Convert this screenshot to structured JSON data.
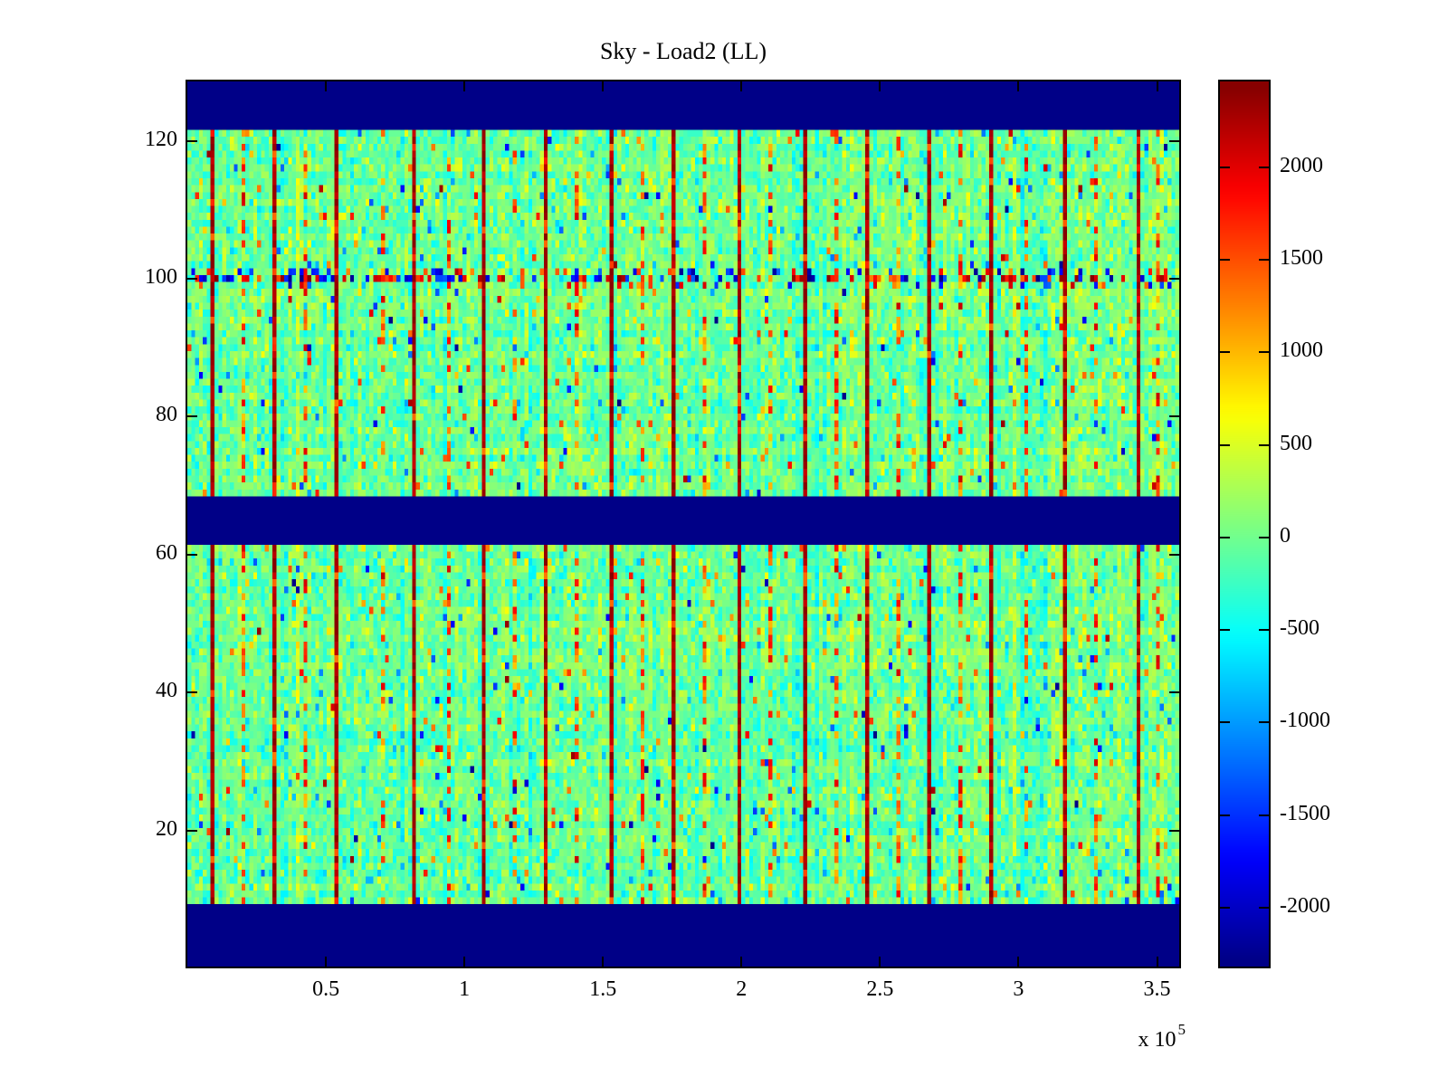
{
  "figure": {
    "background": "#ffffff",
    "frame_color": "#000000"
  },
  "chart_data": {
    "type": "heatmap",
    "title": "Sky - Load2 (LL)",
    "x_axis": {
      "min": 0,
      "max": 358000,
      "ticks": [
        50000,
        100000,
        150000,
        200000,
        250000,
        300000,
        350000
      ],
      "tick_labels": [
        "0.5",
        "1",
        "1.5",
        "2",
        "2.5",
        "3",
        "3.5"
      ],
      "scale_label": "x 10",
      "scale_exponent": "5"
    },
    "y_axis": {
      "min": 0.3,
      "max": 128.6,
      "ticks": [
        20,
        40,
        60,
        80,
        100,
        120
      ],
      "tick_labels": [
        "20",
        "40",
        "60",
        "80",
        "100",
        "120"
      ]
    },
    "colorbar": {
      "vmin": -2319,
      "vmax": 2465,
      "ticks": [
        2000,
        1500,
        1000,
        500,
        0,
        -500,
        -1000,
        -1500,
        -2000
      ],
      "tick_labels": [
        "2000",
        "1500",
        "1000",
        "500",
        "0",
        "-500",
        "-1000",
        "-1500",
        "-2000"
      ],
      "colormap": "jet",
      "segments": 64
    },
    "grid": {
      "cols": 256,
      "rows": 128
    },
    "blank_row_bands": [
      [
        0,
        6
      ],
      [
        60,
        66
      ],
      [
        119,
        127
      ]
    ],
    "data_row_bands": [
      [
        7,
        59
      ],
      [
        67,
        118
      ]
    ],
    "blank_color": "#000080",
    "special_rows": {
      "full": [
        28
      ],
      "partial": [
        27,
        29
      ]
    },
    "streaks": {
      "primary_cols": [
        6,
        22,
        38,
        58,
        76,
        92,
        109,
        125,
        142,
        159,
        175,
        191,
        207,
        226,
        245
      ],
      "secondary_cols": [
        14,
        30,
        50,
        67,
        84,
        100,
        117,
        133,
        150,
        167,
        183,
        199,
        216,
        234,
        250
      ]
    },
    "noise_sigma": 280,
    "outlier_fraction": 0.025,
    "extreme_fraction": 0.004,
    "seed": 20101
  }
}
